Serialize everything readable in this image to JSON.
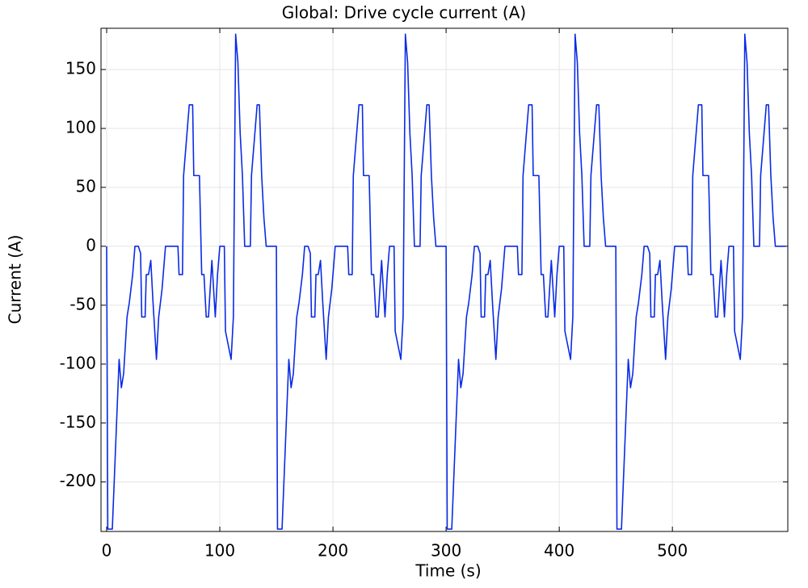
{
  "chart_data": {
    "type": "line",
    "title": "Global: Drive cycle current (A)",
    "x_label": "Time (s)",
    "y_label": "Current (A)",
    "xlim": [
      -5,
      602
    ],
    "ylim": [
      -242,
      185
    ],
    "xticks": [
      0,
      100,
      200,
      300,
      400,
      500
    ],
    "yticks": [
      -200,
      -150,
      -100,
      -50,
      0,
      50,
      100,
      150
    ],
    "grid": true,
    "series": [
      {
        "color": "#0a2be6",
        "x": [
          0,
          1,
          5,
          9,
          11,
          13,
          15,
          18,
          20,
          23,
          25,
          28,
          30,
          31,
          34,
          35,
          37,
          39,
          41,
          44,
          46,
          49,
          52,
          63,
          64,
          67,
          68,
          71,
          73,
          76,
          77,
          82,
          84,
          86,
          88,
          90,
          93,
          96,
          98,
          100,
          104,
          105,
          110,
          112,
          114,
          116,
          118,
          120,
          122,
          127,
          128,
          131,
          133,
          135,
          137,
          139,
          141,
          150,
          151,
          155,
          159,
          161,
          163,
          165,
          168,
          170,
          173,
          175,
          178,
          180,
          181,
          184,
          185,
          187,
          189,
          191,
          194,
          196,
          199,
          202,
          213,
          214,
          217,
          218,
          221,
          223,
          226,
          227,
          232,
          234,
          236,
          238,
          240,
          243,
          246,
          248,
          250,
          254,
          255,
          260,
          262,
          264,
          266,
          268,
          270,
          272,
          277,
          278,
          281,
          283,
          285,
          287,
          289,
          291,
          300,
          301,
          305,
          309,
          311,
          313,
          315,
          318,
          320,
          323,
          325,
          328,
          330,
          331,
          334,
          335,
          337,
          339,
          341,
          344,
          346,
          349,
          352,
          363,
          364,
          367,
          368,
          371,
          373,
          376,
          377,
          382,
          384,
          386,
          388,
          390,
          393,
          396,
          398,
          400,
          404,
          405,
          410,
          412,
          414,
          416,
          418,
          420,
          422,
          427,
          428,
          431,
          433,
          435,
          437,
          439,
          441,
          450,
          451,
          455,
          459,
          461,
          463,
          465,
          468,
          470,
          473,
          475,
          478,
          480,
          481,
          484,
          485,
          487,
          489,
          491,
          494,
          496,
          499,
          502,
          513,
          514,
          517,
          518,
          521,
          523,
          526,
          527,
          532,
          534,
          536,
          538,
          540,
          543,
          546,
          548,
          550,
          554,
          555,
          560,
          562,
          564,
          566,
          568,
          570,
          572,
          577,
          578,
          581,
          583,
          585,
          587,
          589,
          591,
          600
        ],
        "values": [
          0,
          -240,
          -240,
          -144,
          -96,
          -120,
          -108,
          -60,
          -48,
          -24,
          0,
          0,
          -6,
          -60,
          -60,
          -24,
          -24,
          -12,
          -48,
          -96,
          -60,
          -36,
          0,
          0,
          -24,
          -24,
          60,
          96,
          120,
          120,
          60,
          60,
          -24,
          -24,
          -60,
          -60,
          -12,
          -60,
          -24,
          0,
          0,
          -72,
          -96,
          -60,
          180,
          156,
          96,
          60,
          0,
          0,
          60,
          96,
          120,
          120,
          60,
          24,
          0,
          0,
          -240,
          -240,
          -144,
          -96,
          -120,
          -108,
          -60,
          -48,
          -24,
          0,
          0,
          -6,
          -60,
          -60,
          -24,
          -24,
          -12,
          -48,
          -96,
          -60,
          -36,
          0,
          0,
          -24,
          -24,
          60,
          96,
          120,
          120,
          60,
          60,
          -24,
          -24,
          -60,
          -60,
          -12,
          -60,
          -24,
          0,
          0,
          -72,
          -96,
          -60,
          180,
          156,
          96,
          60,
          0,
          0,
          60,
          96,
          120,
          120,
          60,
          24,
          0,
          0,
          -240,
          -240,
          -144,
          -96,
          -120,
          -108,
          -60,
          -48,
          -24,
          0,
          0,
          -6,
          -60,
          -60,
          -24,
          -24,
          -12,
          -48,
          -96,
          -60,
          -36,
          0,
          0,
          -24,
          -24,
          60,
          96,
          120,
          120,
          60,
          60,
          -24,
          -24,
          -60,
          -60,
          -12,
          -60,
          -24,
          0,
          0,
          -72,
          -96,
          -60,
          180,
          156,
          96,
          60,
          0,
          0,
          60,
          96,
          120,
          120,
          60,
          24,
          0,
          0,
          -240,
          -240,
          -144,
          -96,
          -120,
          -108,
          -60,
          -48,
          -24,
          0,
          0,
          -6,
          -60,
          -60,
          -24,
          -24,
          -12,
          -48,
          -96,
          -60,
          -36,
          0,
          0,
          -24,
          -24,
          60,
          96,
          120,
          120,
          60,
          60,
          -24,
          -24,
          -60,
          -60,
          -12,
          -60,
          -24,
          0,
          0,
          -72,
          -96,
          -60,
          180,
          156,
          96,
          60,
          0,
          0,
          60,
          96,
          120,
          120,
          60,
          24,
          0,
          0
        ]
      }
    ]
  }
}
